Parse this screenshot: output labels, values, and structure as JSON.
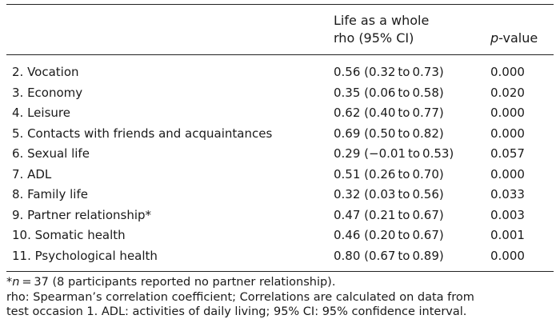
{
  "table": {
    "header": {
      "col_ci_line1": "Life as a whole",
      "col_ci_line2": "rho (95% CI)",
      "col_p_italic": "p",
      "col_p_rest": "-value"
    },
    "rows": [
      {
        "item": "2. Vocation",
        "ci": "0.56 (0.32 to 0.73)",
        "p": "0.000"
      },
      {
        "item": "3. Economy",
        "ci": "0.35 (0.06 to 0.58)",
        "p": "0.020"
      },
      {
        "item": "4. Leisure",
        "ci": "0.62 (0.40 to 0.77)",
        "p": "0.000"
      },
      {
        "item": "5. Contacts with friends and acquaintances",
        "ci": "0.69 (0.50 to 0.82)",
        "p": "0.000"
      },
      {
        "item": "6. Sexual life",
        "ci": "0.29 (−0.01 to 0.53)",
        "p": "0.057"
      },
      {
        "item": "7. ADL",
        "ci": "0.51 (0.26 to 0.70)",
        "p": "0.000"
      },
      {
        "item": "8. Family life",
        "ci": "0.32 (0.03 to 0.56)",
        "p": "0.033"
      },
      {
        "item": "9. Partner relationship*",
        "ci": "0.47 (0.21 to 0.67)",
        "p": "0.003"
      },
      {
        "item": "10. Somatic health",
        "ci": "0.46 (0.20 to 0.67)",
        "p": "0.001"
      },
      {
        "item": "11. Psychological health",
        "ci": "0.80 (0.67 to 0.89)",
        "p": "0.000"
      }
    ]
  },
  "notes": {
    "line1_star": "*",
    "line1_n": "n",
    "line1_rest": " = 37 (8 participants reported no partner relationship).",
    "line2": "rho: Spearman’s correlation coefficient; Correlations are calculated on data from",
    "line3": "test occasion 1. ADL: activities of daily living; 95% CI: 95% confidence interval."
  }
}
